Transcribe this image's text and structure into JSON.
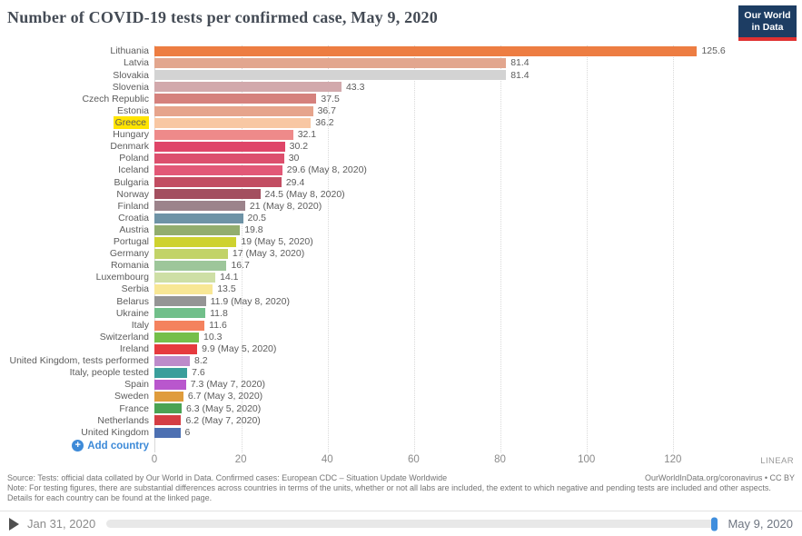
{
  "header": {
    "logo_line1": "Our World",
    "logo_line2": "in Data"
  },
  "chart_data": {
    "type": "bar",
    "orientation": "horizontal",
    "title": "Number of COVID-19 tests per confirmed case, May 9, 2020",
    "xlabel": "",
    "ylabel": "",
    "x_ticks": [
      0,
      20,
      40,
      60,
      80,
      100,
      120
    ],
    "axis_max": 144,
    "grid": "dotted-vertical",
    "scale_label": "LINEAR",
    "add_country_label": "Add country",
    "bars": [
      {
        "label": "Lithuania",
        "value": 125.6,
        "display": "125.6",
        "color": "#ed7d42",
        "highlighted": false
      },
      {
        "label": "Latvia",
        "value": 81.4,
        "display": "81.4",
        "color": "#e2a68e",
        "highlighted": false
      },
      {
        "label": "Slovakia",
        "value": 81.4,
        "display": "81.4",
        "color": "#d3d3d3",
        "highlighted": false
      },
      {
        "label": "Slovenia",
        "value": 43.3,
        "display": "43.3",
        "color": "#d2a9ac",
        "highlighted": false
      },
      {
        "label": "Czech Republic",
        "value": 37.5,
        "display": "37.5",
        "color": "#d5817d",
        "highlighted": false
      },
      {
        "label": "Estonia",
        "value": 36.7,
        "display": "36.7",
        "color": "#e6a48c",
        "highlighted": false
      },
      {
        "label": "Greece",
        "value": 36.2,
        "display": "36.2",
        "color": "#f8c7a3",
        "highlighted": true
      },
      {
        "label": "Hungary",
        "value": 32.1,
        "display": "32.1",
        "color": "#ee8a8a",
        "highlighted": false
      },
      {
        "label": "Denmark",
        "value": 30.2,
        "display": "30.2",
        "color": "#df4669",
        "highlighted": false
      },
      {
        "label": "Poland",
        "value": 30,
        "display": "30",
        "color": "#dc4f6d",
        "highlighted": false
      },
      {
        "label": "Iceland",
        "value": 29.6,
        "display": "29.6 (May 8, 2020)",
        "color": "#e25877",
        "highlighted": false
      },
      {
        "label": "Bulgaria",
        "value": 29.4,
        "display": "29.4",
        "color": "#c24d62",
        "highlighted": false
      },
      {
        "label": "Norway",
        "value": 24.5,
        "display": "24.5 (May 8, 2020)",
        "color": "#a34f5f",
        "highlighted": false
      },
      {
        "label": "Finland",
        "value": 21,
        "display": "21 (May 8, 2020)",
        "color": "#9c838b",
        "highlighted": false
      },
      {
        "label": "Croatia",
        "value": 20.5,
        "display": "20.5",
        "color": "#6e93a6",
        "highlighted": false
      },
      {
        "label": "Austria",
        "value": 19.8,
        "display": "19.8",
        "color": "#92ad6e",
        "highlighted": false
      },
      {
        "label": "Portugal",
        "value": 19,
        "display": "19 (May 5, 2020)",
        "color": "#ced22f",
        "highlighted": false
      },
      {
        "label": "Germany",
        "value": 17,
        "display": "17 (May 3, 2020)",
        "color": "#c2d368",
        "highlighted": false
      },
      {
        "label": "Romania",
        "value": 16.7,
        "display": "16.7",
        "color": "#9dc69a",
        "highlighted": false
      },
      {
        "label": "Luxembourg",
        "value": 14.1,
        "display": "14.1",
        "color": "#cedfa6",
        "highlighted": false
      },
      {
        "label": "Serbia",
        "value": 13.5,
        "display": "13.5",
        "color": "#f8e795",
        "highlighted": false
      },
      {
        "label": "Belarus",
        "value": 11.9,
        "display": "11.9 (May 8, 2020)",
        "color": "#959595",
        "highlighted": false
      },
      {
        "label": "Ukraine",
        "value": 11.8,
        "display": "11.8",
        "color": "#71bf8a",
        "highlighted": false
      },
      {
        "label": "Italy",
        "value": 11.6,
        "display": "11.6",
        "color": "#f4825e",
        "highlighted": false
      },
      {
        "label": "Switzerland",
        "value": 10.3,
        "display": "10.3",
        "color": "#75bf4a",
        "highlighted": false
      },
      {
        "label": "Ireland",
        "value": 9.9,
        "display": "9.9 (May 5, 2020)",
        "color": "#e63a3e",
        "highlighted": false
      },
      {
        "label": "United Kingdom, tests performed",
        "value": 8.2,
        "display": "8.2",
        "color": "#bd8bca",
        "highlighted": false
      },
      {
        "label": "Italy, people tested",
        "value": 7.6,
        "display": "7.6",
        "color": "#3a9e9b",
        "highlighted": false
      },
      {
        "label": "Spain",
        "value": 7.3,
        "display": "7.3 (May 7, 2020)",
        "color": "#b957cd",
        "highlighted": false
      },
      {
        "label": "Sweden",
        "value": 6.7,
        "display": "6.7 (May 3, 2020)",
        "color": "#df9c3c",
        "highlighted": false
      },
      {
        "label": "France",
        "value": 6.3,
        "display": "6.3 (May 5, 2020)",
        "color": "#4aa354",
        "highlighted": false
      },
      {
        "label": "Netherlands",
        "value": 6.2,
        "display": "6.2 (May 7, 2020)",
        "color": "#d43e44",
        "highlighted": false
      },
      {
        "label": "United Kingdom",
        "value": 6,
        "display": "6",
        "color": "#4d70b2",
        "highlighted": false
      }
    ]
  },
  "footer": {
    "source": "Source: Tests: official data collated by Our World in Data. Confirmed cases: European CDC – Situation Update Worldwide",
    "license": "OurWorldInData.org/coronavirus • CC BY",
    "note": "Note: For testing figures, there are substantial differences across countries in terms of the units, whether or not all labs are included, the extent to which negative and pending tests are included and other aspects. Details for each country can be found at the linked page."
  },
  "timeline": {
    "start_date": "Jan 31, 2020",
    "end_date": "May 9, 2020"
  }
}
